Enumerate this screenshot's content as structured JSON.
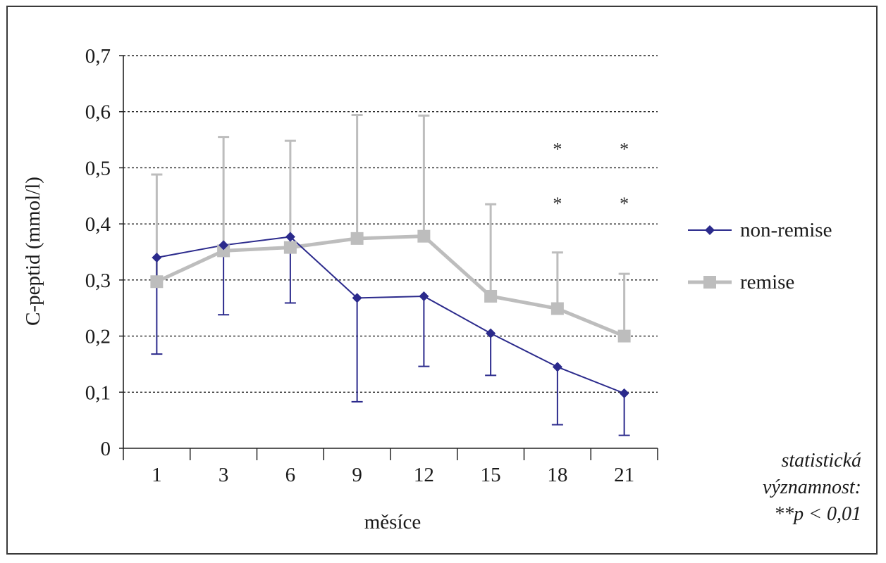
{
  "chart_data": {
    "type": "line",
    "title": "",
    "xlabel": "měsíce",
    "ylabel": "C-peptid (mmol/l)",
    "categories": [
      "1",
      "3",
      "6",
      "9",
      "12",
      "15",
      "18",
      "21"
    ],
    "ylim": [
      0,
      0.7
    ],
    "yticks": [
      0,
      0.1,
      0.2,
      0.3,
      0.4,
      0.5,
      0.6,
      0.7
    ],
    "ytick_labels": [
      "0",
      "0,1",
      "0,2",
      "0,3",
      "0,4",
      "0,5",
      "0,6",
      "0,7"
    ],
    "grid": "horizontal dashed",
    "legend": "right",
    "series": [
      {
        "name": "non-remise",
        "color": "#2b2a8c",
        "marker": "diamond",
        "error_direction": "down",
        "values": [
          0.34,
          0.362,
          0.377,
          0.268,
          0.271,
          0.205,
          0.145,
          0.098
        ],
        "error_bar_ends": [
          0.168,
          0.238,
          0.259,
          0.083,
          0.146,
          0.13,
          0.042,
          0.023
        ]
      },
      {
        "name": "remise",
        "color": "#bdbdbd",
        "marker": "square",
        "error_direction": "up",
        "values": [
          0.297,
          0.352,
          0.358,
          0.374,
          0.378,
          0.271,
          0.249,
          0.2
        ],
        "error_bar_ends": [
          0.488,
          0.555,
          0.548,
          0.594,
          0.593,
          0.435,
          0.349,
          0.311
        ]
      }
    ],
    "significance": {
      "categories": [
        "18",
        "21"
      ],
      "marker": "*",
      "star_levels": [
        0.535,
        0.438
      ]
    },
    "note_lines": [
      "statistická",
      "významnost:",
      "**p < 0,01"
    ]
  }
}
